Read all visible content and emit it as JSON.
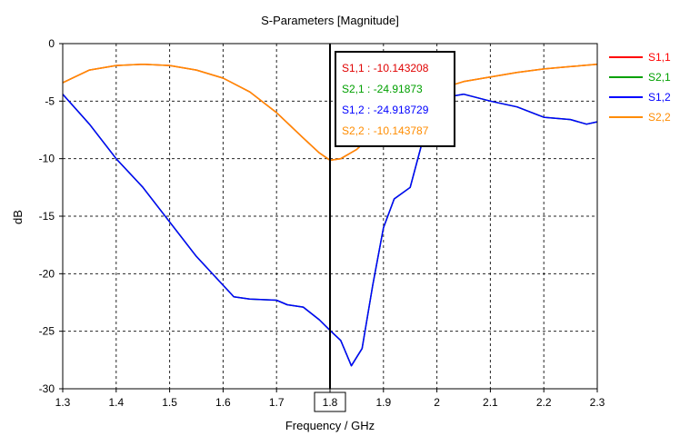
{
  "chart_data": {
    "type": "line",
    "title": "S-Parameters [Magnitude]",
    "xlabel": "Frequency / GHz",
    "ylabel": "dB",
    "xlim": [
      1.3,
      2.3
    ],
    "ylim": [
      -30,
      0
    ],
    "x_ticks": [
      "1.3",
      "1.4",
      "1.5",
      "1.6",
      "1.7",
      "1.8",
      "1.9",
      "2",
      "2.1",
      "2.2",
      "2.3"
    ],
    "x_tick_values": [
      1.3,
      1.4,
      1.5,
      1.6,
      1.7,
      1.8,
      1.9,
      2.0,
      2.1,
      2.2,
      2.3
    ],
    "y_ticks": [
      "0",
      "-5",
      "-10",
      "-15",
      "-20",
      "-25",
      "-30"
    ],
    "y_tick_values": [
      0,
      -5,
      -10,
      -15,
      -20,
      -25,
      -30
    ],
    "grid": true,
    "legend_position": "right",
    "marker": {
      "x": 1.8,
      "x_label": "1.8",
      "readouts": [
        {
          "text": "S1,1 : -10.143208",
          "color": "#e00000"
        },
        {
          "text": "S2,1 : -24.91873",
          "color": "#00a000"
        },
        {
          "text": "S1,2 : -24.918729",
          "color": "#0000ff"
        },
        {
          "text": "S2,2 : -10.143787",
          "color": "#ff8c00"
        }
      ]
    },
    "series": [
      {
        "name": "S1,1",
        "color": "#ff0000",
        "x": [
          1.3,
          1.35,
          1.4,
          1.45,
          1.5,
          1.55,
          1.6,
          1.65,
          1.7,
          1.75,
          1.78,
          1.8,
          1.82,
          1.85,
          1.9,
          1.95,
          2.0,
          2.05,
          2.1,
          2.15,
          2.2,
          2.25,
          2.3
        ],
        "y": [
          -3.4,
          -2.3,
          -1.9,
          -1.8,
          -1.9,
          -2.3,
          -3.0,
          -4.2,
          -6.0,
          -8.2,
          -9.5,
          -10.14,
          -10.0,
          -9.2,
          -7.0,
          -5.2,
          -4.0,
          -3.3,
          -2.9,
          -2.5,
          -2.2,
          -2.0,
          -1.8
        ]
      },
      {
        "name": "S2,1",
        "color": "#00a000",
        "x": [
          1.3,
          1.35,
          1.4,
          1.45,
          1.5,
          1.55,
          1.6,
          1.62,
          1.65,
          1.7,
          1.72,
          1.75,
          1.78,
          1.8,
          1.82,
          1.84,
          1.86,
          1.88,
          1.9,
          1.92,
          1.95,
          1.97,
          2.0,
          2.05,
          2.1,
          2.15,
          2.2,
          2.25,
          2.28,
          2.3
        ],
        "y": [
          -4.4,
          -7.0,
          -10.0,
          -12.5,
          -15.5,
          -18.5,
          -21.0,
          -22.0,
          -22.2,
          -22.3,
          -22.7,
          -22.9,
          -24.0,
          -24.92,
          -25.8,
          -28.0,
          -26.5,
          -21.0,
          -16.0,
          -13.5,
          -12.5,
          -9.0,
          -4.8,
          -4.4,
          -5.0,
          -5.5,
          -6.4,
          -6.6,
          -7.0,
          -6.8
        ]
      },
      {
        "name": "S1,2",
        "color": "#0000ff",
        "x": [
          1.3,
          1.35,
          1.4,
          1.45,
          1.5,
          1.55,
          1.6,
          1.62,
          1.65,
          1.7,
          1.72,
          1.75,
          1.78,
          1.8,
          1.82,
          1.84,
          1.86,
          1.88,
          1.9,
          1.92,
          1.95,
          1.97,
          2.0,
          2.05,
          2.1,
          2.15,
          2.2,
          2.25,
          2.28,
          2.3
        ],
        "y": [
          -4.4,
          -7.0,
          -10.0,
          -12.5,
          -15.5,
          -18.5,
          -21.0,
          -22.0,
          -22.2,
          -22.3,
          -22.7,
          -22.9,
          -24.0,
          -24.92,
          -25.8,
          -28.0,
          -26.5,
          -21.0,
          -16.0,
          -13.5,
          -12.5,
          -9.0,
          -4.8,
          -4.4,
          -5.0,
          -5.5,
          -6.4,
          -6.6,
          -7.0,
          -6.8
        ]
      },
      {
        "name": "S2,2",
        "color": "#ff8c00",
        "x": [
          1.3,
          1.35,
          1.4,
          1.45,
          1.5,
          1.55,
          1.6,
          1.65,
          1.7,
          1.75,
          1.78,
          1.8,
          1.82,
          1.85,
          1.9,
          1.95,
          2.0,
          2.05,
          2.1,
          2.15,
          2.2,
          2.25,
          2.3
        ],
        "y": [
          -3.4,
          -2.3,
          -1.9,
          -1.8,
          -1.9,
          -2.3,
          -3.0,
          -4.2,
          -6.0,
          -8.2,
          -9.5,
          -10.14,
          -10.0,
          -9.2,
          -7.0,
          -5.2,
          -4.0,
          -3.3,
          -2.9,
          -2.5,
          -2.2,
          -2.0,
          -1.8
        ]
      }
    ]
  }
}
